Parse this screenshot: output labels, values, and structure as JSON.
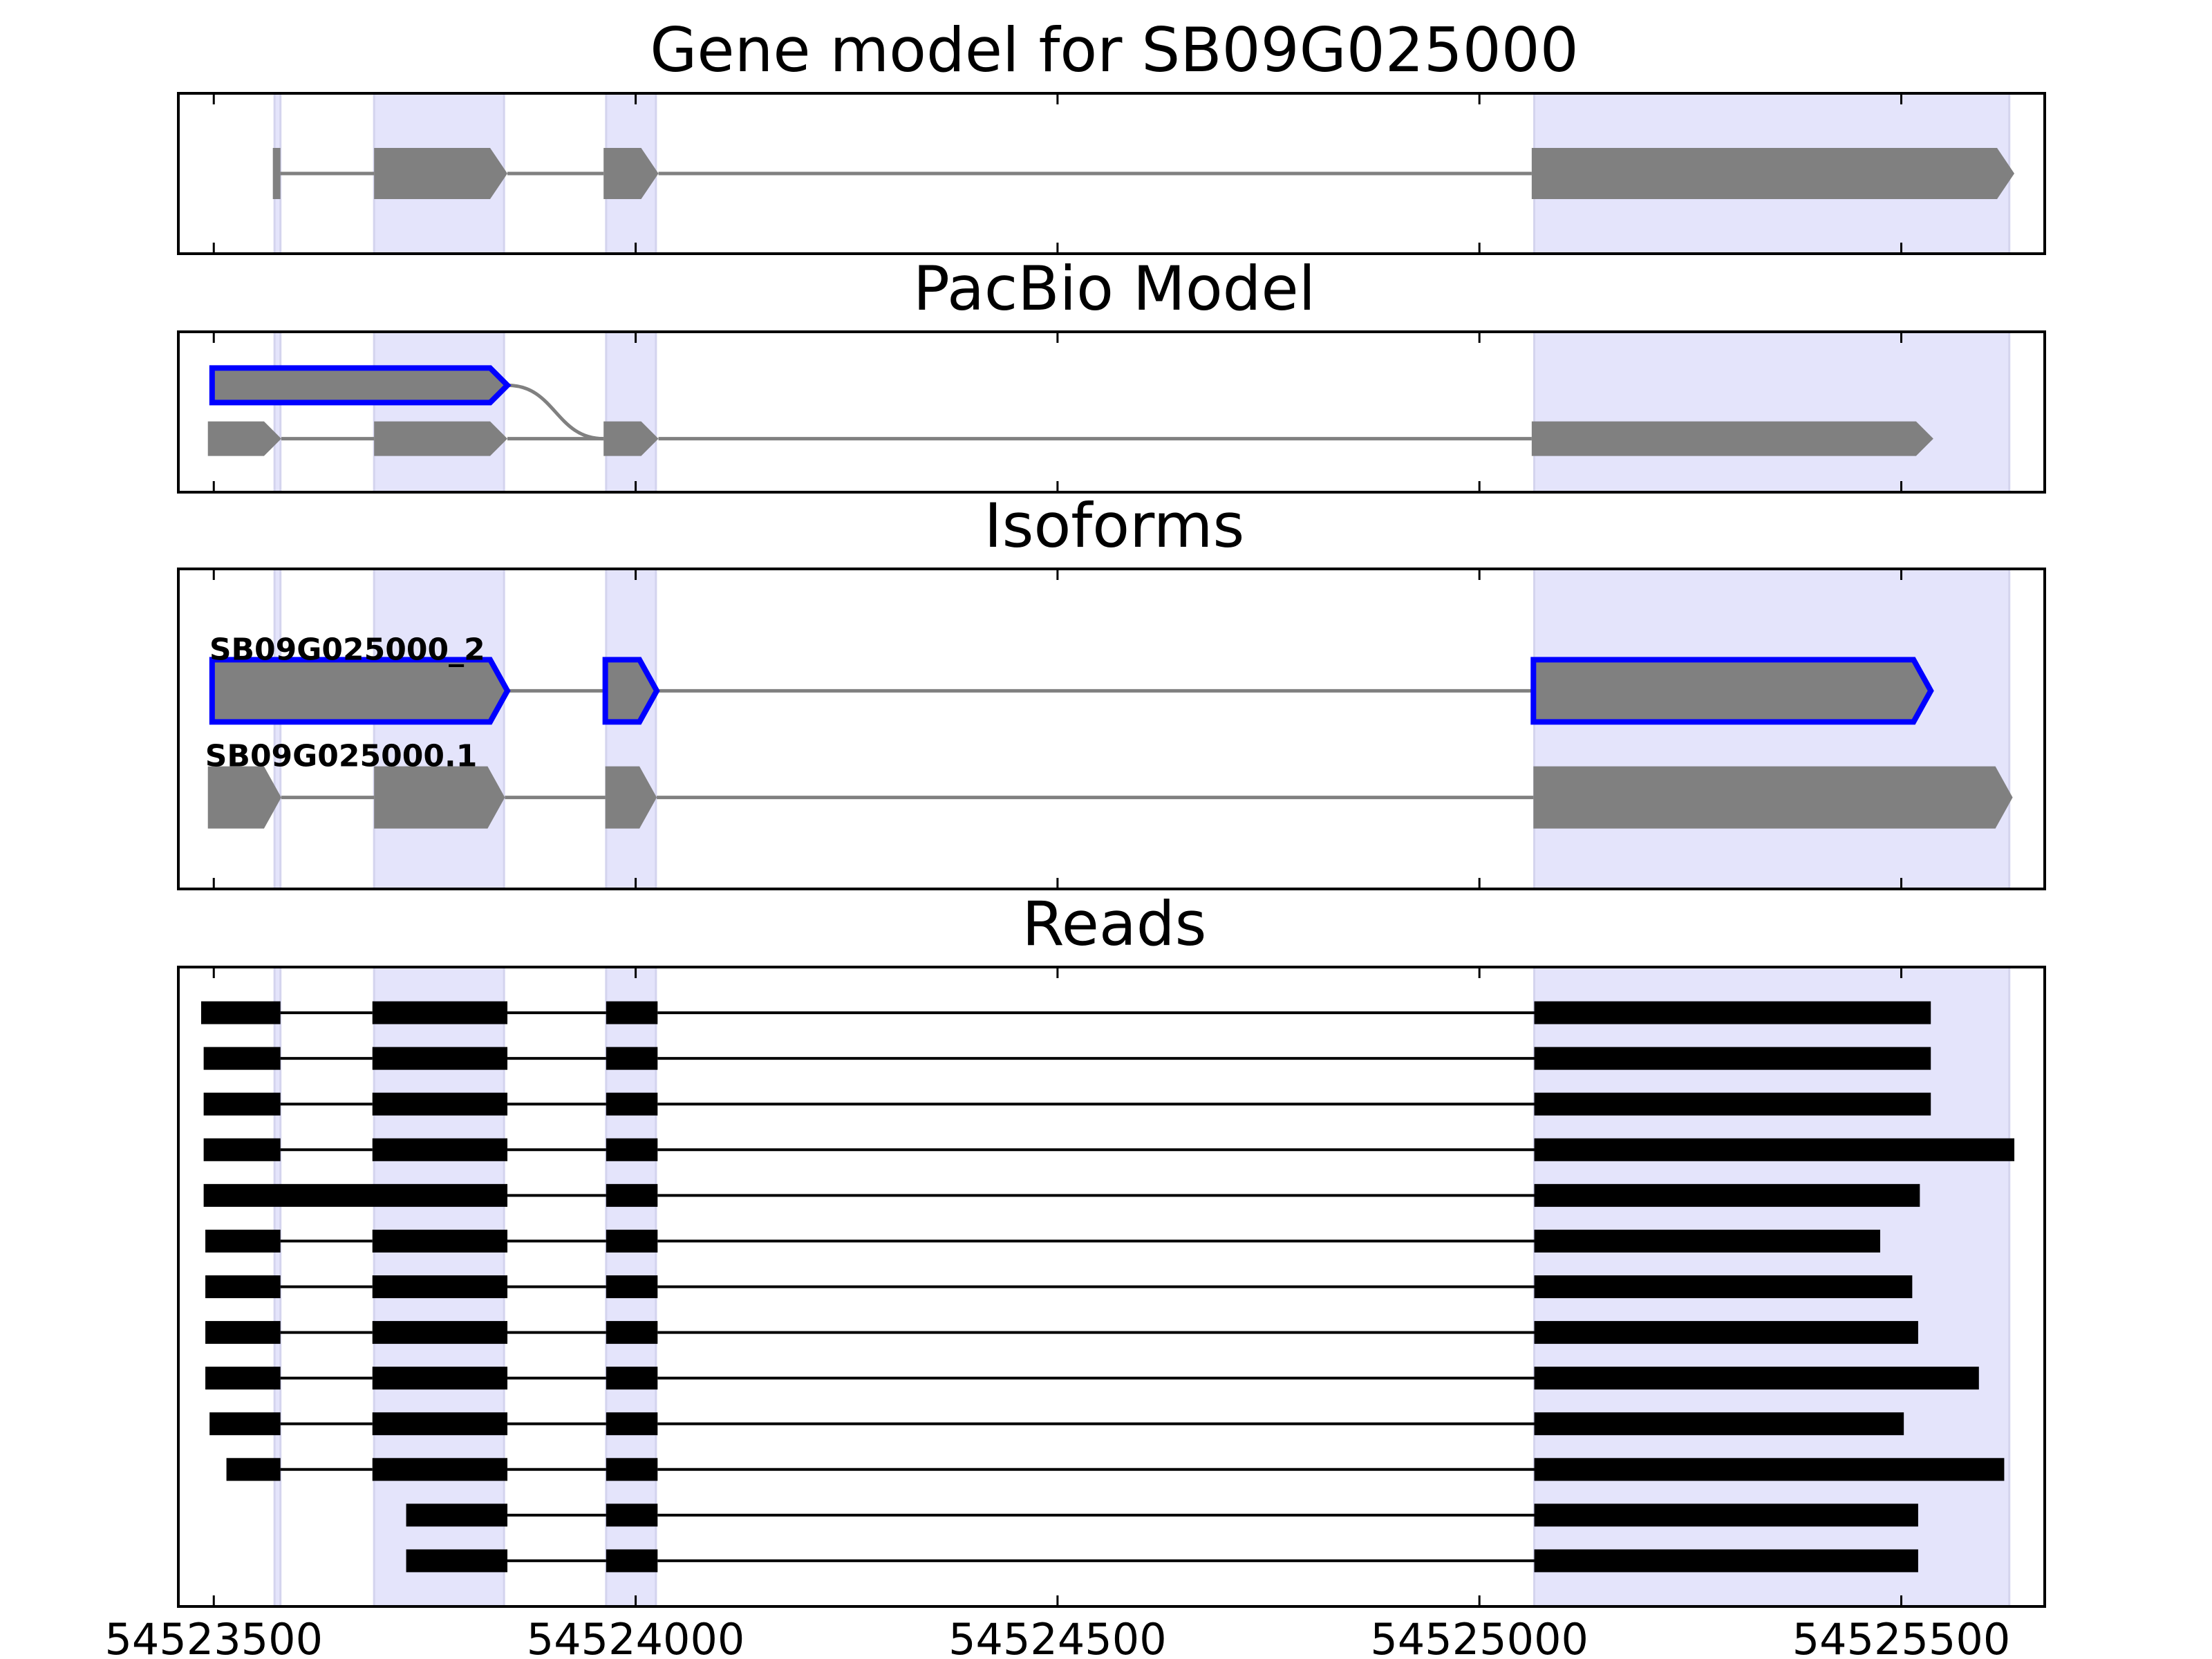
{
  "chart_data": [
    {
      "type": "gene-model",
      "title": "Gene model for SB09G025000",
      "color": "#808080",
      "highlight_color": "#0000ff",
      "rows": [
        {
          "exons": [
            [
              54523570,
              54523579
            ],
            [
              54523690,
              54523848
            ],
            [
              54523962,
              54524027
            ],
            [
              54525062,
              54525634
            ]
          ]
        }
      ]
    },
    {
      "type": "gene-model",
      "title": "PacBio Model",
      "color": "#808080",
      "highlight_color": "#0000ff",
      "rows": [
        {
          "exons": [
            [
              54523498,
              54523848
            ]
          ],
          "highlight": true
        },
        {
          "exons": [
            [
              54523493,
              54523580
            ],
            [
              54523690,
              54523848
            ],
            [
              54523962,
              54524027
            ],
            [
              54525062,
              54525538
            ]
          ]
        }
      ]
    },
    {
      "type": "gene-model",
      "title": "Isoforms",
      "color": "#808080",
      "highlight_color": "#0000ff",
      "rows": [
        {
          "name": "SB09G025000_2",
          "highlight": true,
          "exons": [
            [
              54523498,
              54523848
            ],
            [
              54523964,
              54524025
            ],
            [
              54525064,
              54525535
            ]
          ]
        },
        {
          "name": "SB09G025000.1",
          "exons": [
            [
              54523493,
              54523580
            ],
            [
              54523690,
              54523845
            ],
            [
              54523964,
              54524025
            ],
            [
              54525064,
              54525632
            ]
          ]
        }
      ]
    },
    {
      "type": "reads",
      "title": "Reads",
      "color": "#000000",
      "xlim": [
        54523458,
        54525670
      ],
      "xticks": [
        54523500,
        54524000,
        54524500,
        54525000,
        54525500
      ],
      "highlights": [
        [
          54523572,
          54523579
        ],
        [
          54523690,
          54523844
        ],
        [
          54523965,
          54524024
        ],
        [
          54525065,
          54525628
        ]
      ],
      "highlight_fill": "#e4e4fb",
      "rows": [
        {
          "exons": [
            [
              54523485,
              54523579
            ],
            [
              54523688,
              54523848
            ],
            [
              54523965,
              54524026
            ],
            [
              54525065,
              54525535
            ]
          ]
        },
        {
          "exons": [
            [
              54523488,
              54523579
            ],
            [
              54523688,
              54523848
            ],
            [
              54523965,
              54524026
            ],
            [
              54525065,
              54525535
            ]
          ]
        },
        {
          "exons": [
            [
              54523488,
              54523579
            ],
            [
              54523688,
              54523848
            ],
            [
              54523965,
              54524026
            ],
            [
              54525065,
              54525535
            ]
          ]
        },
        {
          "exons": [
            [
              54523488,
              54523579
            ],
            [
              54523688,
              54523848
            ],
            [
              54523965,
              54524026
            ],
            [
              54525065,
              54525634
            ]
          ]
        },
        {
          "exons": [
            [
              54523488,
              54523848
            ],
            [
              54523965,
              54524026
            ],
            [
              54525065,
              54525522
            ]
          ]
        },
        {
          "exons": [
            [
              54523490,
              54523579
            ],
            [
              54523688,
              54523848
            ],
            [
              54523965,
              54524026
            ],
            [
              54525065,
              54525475
            ]
          ]
        },
        {
          "exons": [
            [
              54523490,
              54523579
            ],
            [
              54523688,
              54523848
            ],
            [
              54523965,
              54524026
            ],
            [
              54525065,
              54525513
            ]
          ]
        },
        {
          "exons": [
            [
              54523490,
              54523579
            ],
            [
              54523688,
              54523848
            ],
            [
              54523965,
              54524026
            ],
            [
              54525065,
              54525520
            ]
          ]
        },
        {
          "exons": [
            [
              54523490,
              54523579
            ],
            [
              54523688,
              54523848
            ],
            [
              54523965,
              54524026
            ],
            [
              54525065,
              54525592
            ]
          ]
        },
        {
          "exons": [
            [
              54523495,
              54523579
            ],
            [
              54523688,
              54523848
            ],
            [
              54523965,
              54524026
            ],
            [
              54525065,
              54525503
            ]
          ]
        },
        {
          "exons": [
            [
              54523515,
              54523579
            ],
            [
              54523688,
              54523848
            ],
            [
              54523965,
              54524026
            ],
            [
              54525065,
              54525622
            ]
          ]
        },
        {
          "exons": [
            [
              54523728,
              54523848
            ],
            [
              54523965,
              54524026
            ],
            [
              54525065,
              54525520
            ]
          ]
        },
        {
          "exons": [
            [
              54523728,
              54523848
            ],
            [
              54523965,
              54524026
            ],
            [
              54525065,
              54525520
            ]
          ]
        }
      ]
    }
  ]
}
